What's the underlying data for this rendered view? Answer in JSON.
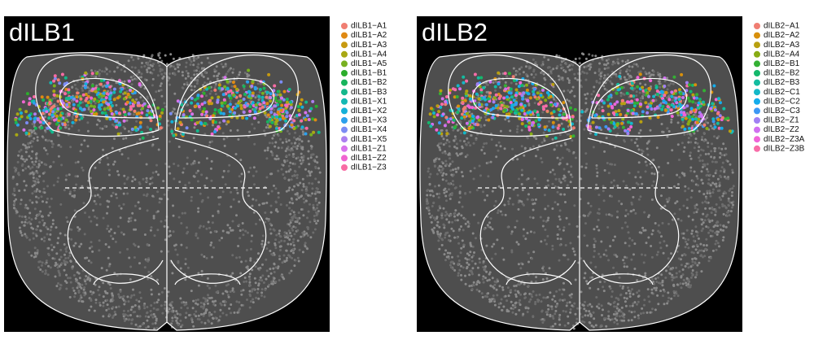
{
  "panels": [
    {
      "title": "dILB1",
      "legend": [
        {
          "label": "dILB1−A1",
          "color": "#f07e72"
        },
        {
          "label": "dILB1−A2",
          "color": "#df8a14"
        },
        {
          "label": "dILB1−A3",
          "color": "#c79a10"
        },
        {
          "label": "dILB1−A4",
          "color": "#a8a814"
        },
        {
          "label": "dILB1−A5",
          "color": "#78b020"
        },
        {
          "label": "dILB1−B1",
          "color": "#2cad2c"
        },
        {
          "label": "dILB1−B2",
          "color": "#18b45c"
        },
        {
          "label": "dILB1−B3",
          "color": "#14b88c"
        },
        {
          "label": "dILB1−X1",
          "color": "#14b8b4"
        },
        {
          "label": "dILB1−X2",
          "color": "#14b0d8"
        },
        {
          "label": "dILB1−X3",
          "color": "#2ca0ec"
        },
        {
          "label": "dILB1−X4",
          "color": "#7c8cf4"
        },
        {
          "label": "dILB1−X5",
          "color": "#ac80f0"
        },
        {
          "label": "dILB1−Z1",
          "color": "#d874ec"
        },
        {
          "label": "dILB1−Z2",
          "color": "#f064d0"
        },
        {
          "label": "dILB1−Z3",
          "color": "#f86ca4"
        }
      ]
    },
    {
      "title": "dILB2",
      "legend": [
        {
          "label": "dILB2−A1",
          "color": "#f07e72"
        },
        {
          "label": "dILB2−A2",
          "color": "#d8900c"
        },
        {
          "label": "dILB2−A3",
          "color": "#b8a010"
        },
        {
          "label": "dILB2−A4",
          "color": "#88ac14"
        },
        {
          "label": "dILB2−B1",
          "color": "#34b034"
        },
        {
          "label": "dILB2−B2",
          "color": "#14b86c"
        },
        {
          "label": "dILB2−B3",
          "color": "#14bca0"
        },
        {
          "label": "dILB2−C1",
          "color": "#14b8c8"
        },
        {
          "label": "dILB2−C2",
          "color": "#14acec"
        },
        {
          "label": "dILB2−C3",
          "color": "#3c98f4"
        },
        {
          "label": "dILB2−Z1",
          "color": "#a080f4"
        },
        {
          "label": "dILB2−Z2",
          "color": "#d070f0"
        },
        {
          "label": "dILB2−Z3A",
          "color": "#f064d8"
        },
        {
          "label": "dILB2−Z3B",
          "color": "#f86ca8"
        }
      ]
    }
  ]
}
